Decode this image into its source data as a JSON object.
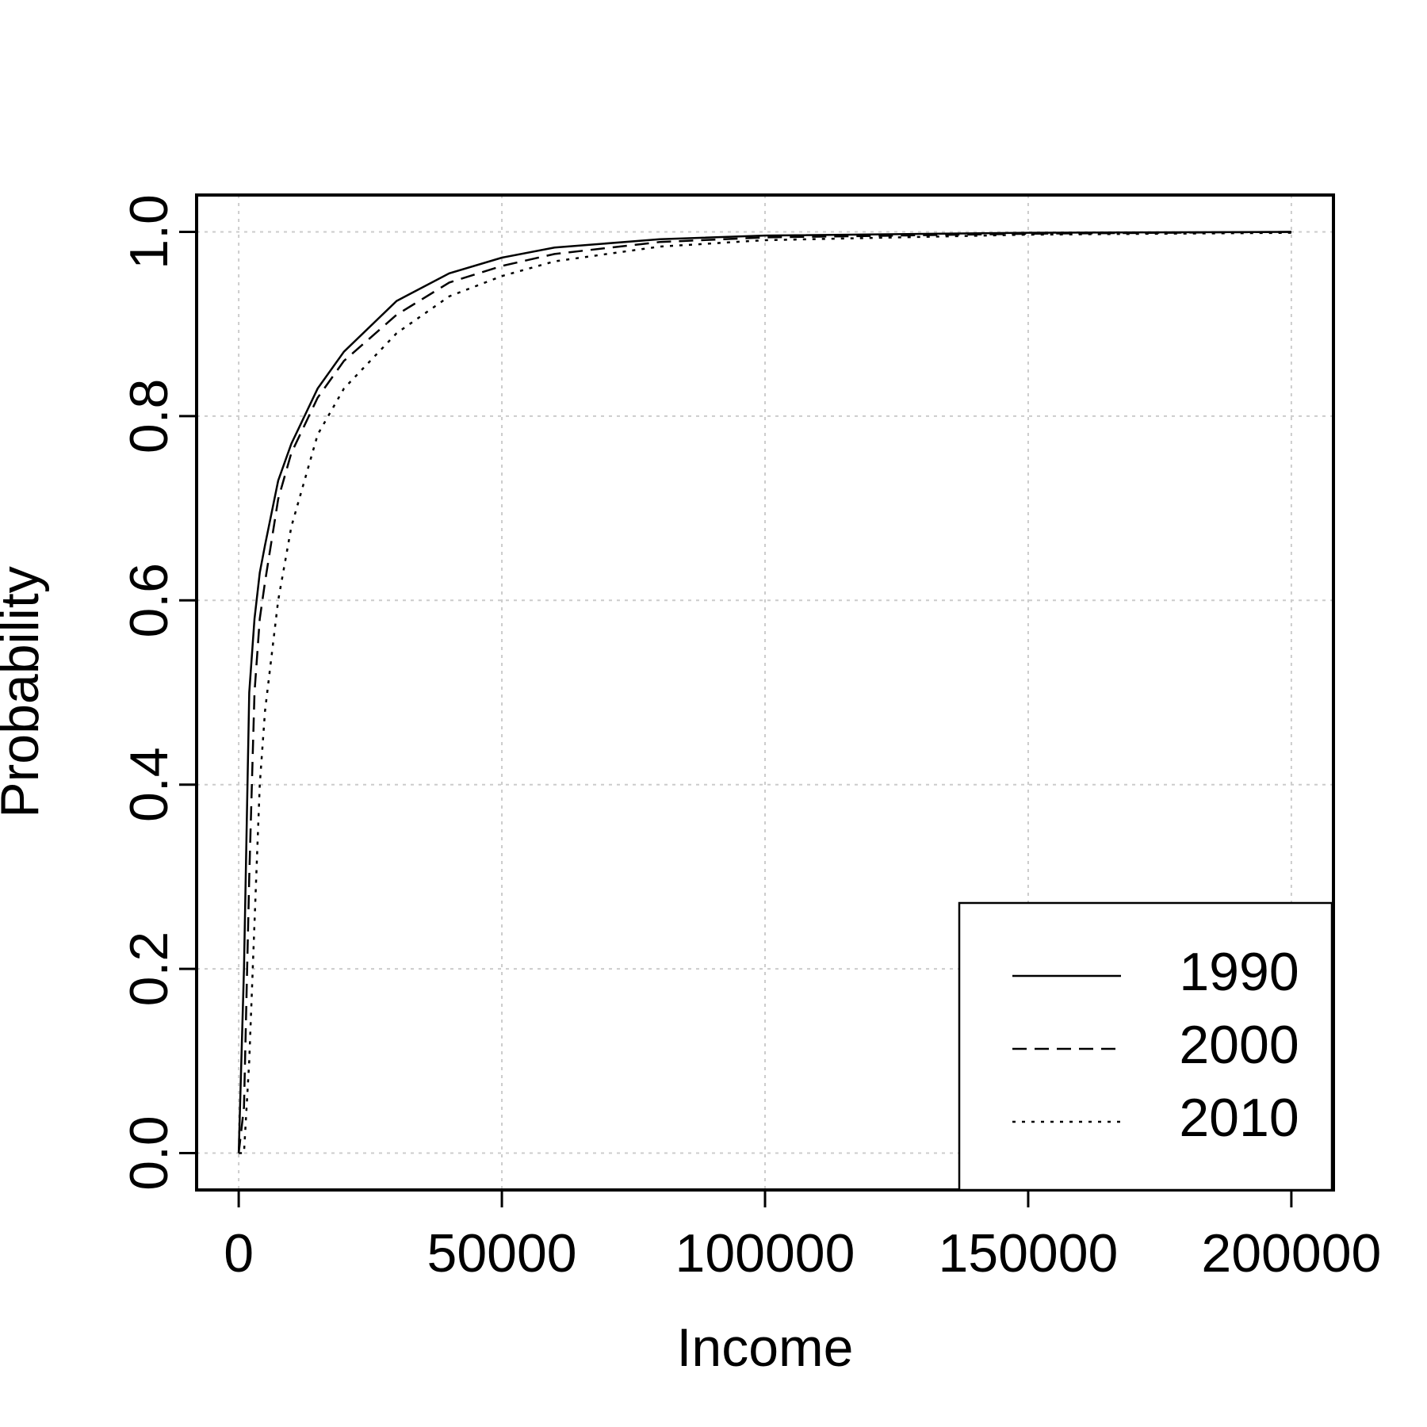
{
  "chart_data": {
    "type": "line",
    "x_label": "Income",
    "y_label": "Probability",
    "x": [
      0,
      1000,
      2000,
      3000,
      4000,
      5000,
      7500,
      10000,
      15000,
      20000,
      30000,
      40000,
      50000,
      60000,
      80000,
      100000,
      150000,
      200000
    ],
    "series": [
      {
        "name": "1990",
        "color": "#000000",
        "linestyle": "solid",
        "values": [
          0,
          0.2,
          0.5,
          0.58,
          0.63,
          0.66,
          0.73,
          0.77,
          0.83,
          0.87,
          0.925,
          0.955,
          0.972,
          0.983,
          0.992,
          0.996,
          0.999,
          1.0
        ]
      },
      {
        "name": "2000",
        "color": "#000000",
        "linestyle": "dashed",
        "values": [
          0,
          0.05,
          0.3,
          0.5,
          0.58,
          0.62,
          0.71,
          0.76,
          0.82,
          0.86,
          0.91,
          0.945,
          0.963,
          0.976,
          0.989,
          0.994,
          0.998,
          1.0
        ]
      },
      {
        "name": "2010",
        "color": "#000000",
        "linestyle": "dotted",
        "values": [
          0,
          0.0,
          0.1,
          0.25,
          0.4,
          0.48,
          0.6,
          0.68,
          0.78,
          0.83,
          0.89,
          0.93,
          0.952,
          0.968,
          0.984,
          0.991,
          0.997,
          0.999
        ]
      }
    ],
    "xlim": [
      -8000,
      208000
    ],
    "ylim": [
      -0.04,
      1.04
    ],
    "xticks": [
      0,
      50000,
      100000,
      150000,
      200000
    ],
    "yticks": [
      {
        "value": 0,
        "label": "0.0"
      },
      {
        "value": 0.2,
        "label": "0.2"
      },
      {
        "value": 0.4,
        "label": "0.4"
      },
      {
        "value": 0.6,
        "label": "0.6"
      },
      {
        "value": 0.8,
        "label": "0.8"
      },
      {
        "value": 1,
        "label": "1.0"
      }
    ],
    "grid": true,
    "legend": "bottom-right"
  }
}
